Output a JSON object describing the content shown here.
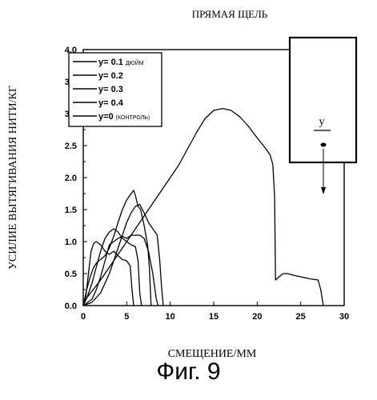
{
  "figure_caption": "Фиг. 9",
  "inset": {
    "label": "y"
  },
  "chart_data": {
    "type": "line",
    "title": "ПРЯМАЯ ЩЕЛЬ",
    "xlabel": "СМЕЩЕНИЕ/ММ",
    "ylabel": "УСИЛИЕ ВЫТЯГИВАНИЯ НИТИ/КГ",
    "xlim": [
      0,
      30
    ],
    "ylim": [
      0,
      4.0
    ],
    "x_ticks": [
      0,
      5,
      10,
      15,
      20,
      25,
      30
    ],
    "x_tick_labels": [
      "0",
      "5",
      "10",
      "15",
      "20",
      "25",
      "30"
    ],
    "y_ticks": [
      0.0,
      0.5,
      1.0,
      1.5,
      2.0,
      2.5,
      3.0,
      3.5,
      4.0
    ],
    "y_tick_labels": [
      "0.0",
      "0.5",
      "1.0",
      "1.5",
      "2.0",
      "2.5",
      "3.0",
      "3.5",
      "4.0"
    ],
    "grid": false,
    "legend_position": "top-left",
    "series": [
      {
        "name": "y= 0.1",
        "unit": "ДЮЙМ",
        "points": [
          [
            0,
            0
          ],
          [
            0.3,
            0.15
          ],
          [
            0.6,
            0.5
          ],
          [
            0.9,
            0.85
          ],
          [
            1.2,
            0.97
          ],
          [
            1.5,
            1.0
          ],
          [
            2.0,
            0.95
          ],
          [
            2.5,
            0.85
          ],
          [
            3.0,
            0.8
          ],
          [
            3.5,
            0.85
          ],
          [
            4.0,
            0.78
          ],
          [
            4.5,
            0.72
          ],
          [
            5.0,
            0.7
          ],
          [
            5.4,
            0.62
          ],
          [
            5.6,
            0.25
          ],
          [
            5.8,
            0.0
          ]
        ]
      },
      {
        "name": "y= 0.2",
        "points": [
          [
            0,
            0
          ],
          [
            0.5,
            0.15
          ],
          [
            1.0,
            0.35
          ],
          [
            1.5,
            0.6
          ],
          [
            2.0,
            0.85
          ],
          [
            2.5,
            1.05
          ],
          [
            3.0,
            1.15
          ],
          [
            3.5,
            1.2
          ],
          [
            4.0,
            1.15
          ],
          [
            4.5,
            1.05
          ],
          [
            5.0,
            1.0
          ],
          [
            5.5,
            0.95
          ],
          [
            6.0,
            0.92
          ],
          [
            6.3,
            0.7
          ],
          [
            6.5,
            0.2
          ],
          [
            6.7,
            0.0
          ]
        ]
      },
      {
        "name": "y= 0.3",
        "points": [
          [
            0,
            0
          ],
          [
            1.0,
            0.1
          ],
          [
            1.5,
            0.25
          ],
          [
            2.0,
            0.45
          ],
          [
            2.5,
            0.7
          ],
          [
            3.0,
            0.95
          ],
          [
            3.5,
            1.0
          ],
          [
            4.0,
            1.05
          ],
          [
            4.5,
            1.08
          ],
          [
            5.0,
            1.05
          ],
          [
            5.5,
            1.1
          ],
          [
            6.0,
            1.1
          ],
          [
            6.5,
            1.1
          ],
          [
            7.0,
            1.05
          ],
          [
            7.5,
            0.85
          ],
          [
            8.0,
            0.5
          ],
          [
            8.4,
            0.1
          ],
          [
            8.6,
            0.0
          ]
        ]
      },
      {
        "name": "y= 0.4",
        "points": [
          [
            0,
            0
          ],
          [
            1.0,
            0.05
          ],
          [
            2.0,
            0.2
          ],
          [
            3.0,
            0.5
          ],
          [
            4.0,
            0.9
          ],
          [
            5.0,
            1.3
          ],
          [
            5.5,
            1.45
          ],
          [
            6.0,
            1.55
          ],
          [
            6.5,
            1.58
          ],
          [
            7.0,
            1.45
          ],
          [
            7.5,
            1.3
          ],
          [
            8.0,
            1.2
          ],
          [
            8.5,
            1.1
          ],
          [
            8.8,
            0.7
          ],
          [
            9.0,
            0.3
          ],
          [
            9.2,
            0.0
          ]
        ]
      },
      {
        "name": "y=0",
        "unit": "(КОНТРОЛЬ)",
        "points": [
          [
            0,
            0.0
          ],
          [
            0.4,
            0.25
          ],
          [
            0.8,
            0.45
          ],
          [
            1.2,
            0.6
          ],
          [
            1.6,
            0.68
          ],
          [
            2.0,
            0.72
          ],
          [
            2.5,
            0.78
          ],
          [
            3.0,
            0.9
          ],
          [
            3.5,
            1.08
          ],
          [
            4.0,
            1.3
          ],
          [
            4.5,
            1.5
          ],
          [
            5.0,
            1.65
          ],
          [
            5.5,
            1.75
          ],
          [
            5.8,
            1.8
          ],
          [
            6.0,
            1.72
          ],
          [
            6.3,
            1.55
          ],
          [
            6.6,
            1.5
          ],
          [
            7.0,
            1.25
          ],
          [
            7.4,
            0.95
          ],
          [
            7.6,
            0.6
          ],
          [
            7.8,
            0.0
          ]
        ]
      },
      {
        "name": "",
        "points": [
          [
            0,
            0.05
          ],
          [
            2,
            0.4
          ],
          [
            4,
            0.8
          ],
          [
            6,
            1.2
          ],
          [
            8,
            1.6
          ],
          [
            10,
            2.0
          ],
          [
            11,
            2.2
          ],
          [
            12,
            2.45
          ],
          [
            13,
            2.7
          ],
          [
            14,
            2.92
          ],
          [
            15,
            3.05
          ],
          [
            16,
            3.08
          ],
          [
            17,
            3.05
          ],
          [
            18,
            2.95
          ],
          [
            19,
            2.8
          ],
          [
            20,
            2.62
          ],
          [
            21,
            2.45
          ],
          [
            21.5,
            2.35
          ],
          [
            21.8,
            2.2
          ],
          [
            22.0,
            1.7
          ],
          [
            22.1,
            0.4
          ],
          [
            22.5,
            0.45
          ],
          [
            23.0,
            0.5
          ],
          [
            23.5,
            0.5
          ],
          [
            24.0,
            0.48
          ],
          [
            25.0,
            0.45
          ],
          [
            26.0,
            0.42
          ],
          [
            27.0,
            0.4
          ],
          [
            27.3,
            0.25
          ],
          [
            27.6,
            0.0
          ]
        ]
      }
    ]
  }
}
